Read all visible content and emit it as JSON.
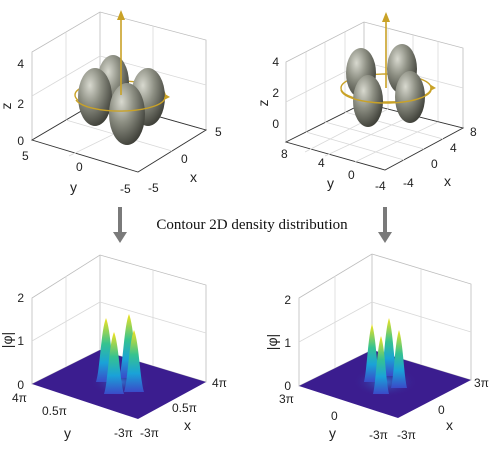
{
  "caption": "Contour 2D density distribution",
  "colors": {
    "ellipsoid": "#8a8c80",
    "arrow": "#c9a227",
    "surface_base": "#3b1d8f",
    "surface_peak": "#f2e21c",
    "gray_arrow": "#7a7a7a"
  },
  "panels": {
    "top_left": {
      "zlabel": "z",
      "xlabel": "x",
      "ylabel": "y",
      "zticks": [
        "4",
        "2",
        "0"
      ],
      "yticks": [
        "5",
        "0",
        "-5"
      ],
      "xticks": [
        "5",
        "0",
        "-5"
      ]
    },
    "top_right": {
      "zlabel": "z",
      "xlabel": "x",
      "ylabel": "y",
      "zticks": [
        "4",
        "2",
        "0"
      ],
      "yticks": [
        "8",
        "4",
        "0",
        "-4"
      ],
      "xticks": [
        "8",
        "4",
        "0",
        "-4"
      ]
    },
    "bottom_left": {
      "zlabel": "|φ|",
      "xlabel": "x",
      "ylabel": "y",
      "zticks": [
        "2",
        "1",
        "0"
      ],
      "yticks": [
        "4π",
        "0.5π",
        "-3π"
      ],
      "xticks": [
        "4π",
        "0.5π",
        "-3π"
      ]
    },
    "bottom_right": {
      "zlabel": "|φ|",
      "xlabel": "x",
      "ylabel": "y",
      "zticks": [
        "2",
        "1",
        "0"
      ],
      "yticks": [
        "3π",
        "0",
        "-3π"
      ],
      "xticks": [
        "3π",
        "0",
        "-3π"
      ]
    }
  }
}
